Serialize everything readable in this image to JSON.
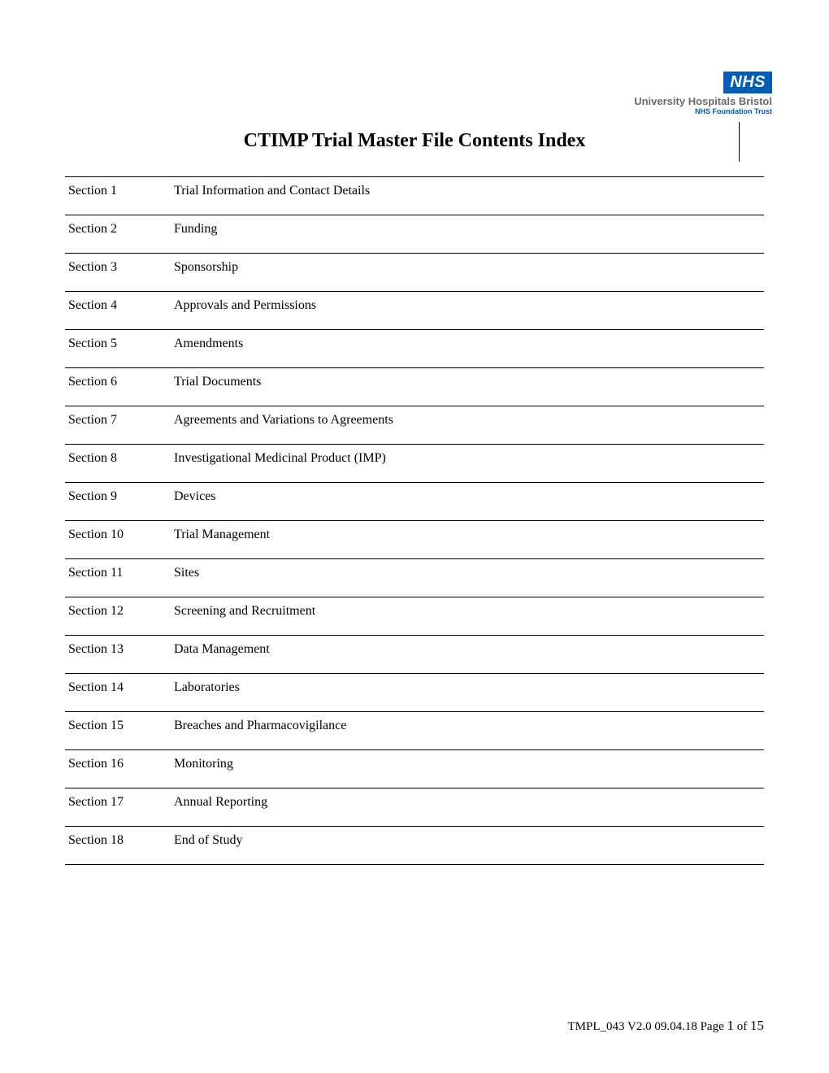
{
  "logo": {
    "badge": "NHS",
    "org_name": "University Hospitals Bristol",
    "org_sub": "NHS Foundation Trust"
  },
  "title": "CTIMP Trial Master File Contents Index",
  "sections": [
    {
      "label": "Section 1",
      "desc": "Trial Information and Contact Details"
    },
    {
      "label": "Section 2",
      "desc": "Funding"
    },
    {
      "label": "Section 3",
      "desc": "Sponsorship"
    },
    {
      "label": "Section 4",
      "desc": "Approvals and Permissions"
    },
    {
      "label": "Section 5",
      "desc": "Amendments"
    },
    {
      "label": "Section 6",
      "desc": "Trial Documents"
    },
    {
      "label": "Section 7",
      "desc": "Agreements and Variations to Agreements"
    },
    {
      "label": "Section 8",
      "desc": "Investigational Medicinal Product (IMP)"
    },
    {
      "label": "Section 9",
      "desc": "Devices"
    },
    {
      "label": "Section 10",
      "desc": "Trial Management"
    },
    {
      "label": "Section 11",
      "desc": "Sites"
    },
    {
      "label": "Section 12",
      "desc": "Screening and Recruitment"
    },
    {
      "label": "Section 13",
      "desc": "Data Management"
    },
    {
      "label": "Section 14",
      "desc": "Laboratories"
    },
    {
      "label": "Section 15",
      "desc": "Breaches and  Pharmacovigilance"
    },
    {
      "label": "Section 16",
      "desc": "Monitoring"
    },
    {
      "label": "Section 17",
      "desc": "Annual Reporting"
    },
    {
      "label": "Section 18",
      "desc": "End of Study"
    }
  ],
  "footer": {
    "doc_id": "TMPL_043 V2.0 09.04.18 Page ",
    "page_current": "1",
    "page_sep": " of ",
    "page_total": "15"
  }
}
